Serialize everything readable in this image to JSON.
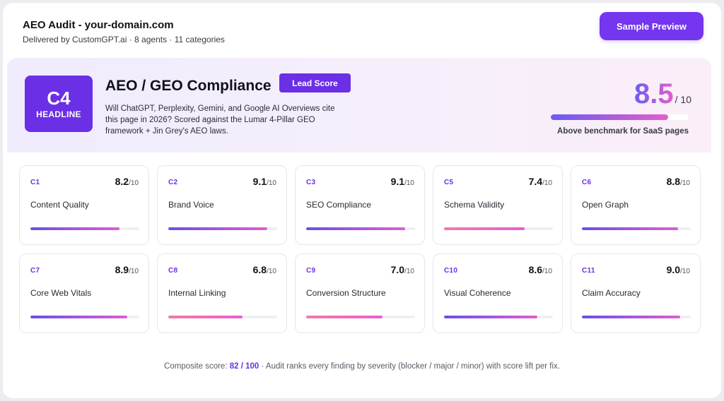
{
  "header": {
    "title": "AEO Audit - your-domain.com",
    "subtitle": "Delivered by CustomGPT.ai · 8 agents · 11 categories",
    "sample_button": "Sample Preview"
  },
  "hero": {
    "badge_code": "C4",
    "badge_label": "HEADLINE",
    "title": "AEO / GEO Compliance",
    "lead_button": "Lead Score",
    "description": "Will ChatGPT, Perplexity, Gemini, and Google AI Overviews cite this page in 2026? Scored against the Lumar 4-Pillar GEO framework + Jin Grey's AEO laws.",
    "score": "8.5",
    "score_max": "/ 10",
    "score_fraction": 0.85,
    "caption": "Above benchmark for SaaS pages"
  },
  "cards": [
    {
      "code": "C1",
      "score": "8.2",
      "max": "/10",
      "label": "Content Quality",
      "fraction": 0.82,
      "color": "purple"
    },
    {
      "code": "C2",
      "score": "9.1",
      "max": "/10",
      "label": "Brand Voice",
      "fraction": 0.91,
      "color": "purple"
    },
    {
      "code": "C3",
      "score": "9.1",
      "max": "/10",
      "label": "SEO Compliance",
      "fraction": 0.91,
      "color": "purple"
    },
    {
      "code": "C5",
      "score": "7.4",
      "max": "/10",
      "label": "Schema Validity",
      "fraction": 0.74,
      "color": "pink"
    },
    {
      "code": "C6",
      "score": "8.8",
      "max": "/10",
      "label": "Open Graph",
      "fraction": 0.88,
      "color": "purple"
    },
    {
      "code": "C7",
      "score": "8.9",
      "max": "/10",
      "label": "Core Web Vitals",
      "fraction": 0.89,
      "color": "purple"
    },
    {
      "code": "C8",
      "score": "6.8",
      "max": "/10",
      "label": "Internal Linking",
      "fraction": 0.68,
      "color": "pink"
    },
    {
      "code": "C9",
      "score": "7.0",
      "max": "/10",
      "label": "Conversion Structure",
      "fraction": 0.7,
      "color": "pink"
    },
    {
      "code": "C10",
      "score": "8.6",
      "max": "/10",
      "label": "Visual Coherence",
      "fraction": 0.86,
      "color": "purple"
    },
    {
      "code": "C11",
      "score": "9.0",
      "max": "/10",
      "label": "Claim Accuracy",
      "fraction": 0.9,
      "color": "purple"
    }
  ],
  "footer": {
    "prefix": "Composite score: ",
    "composite": "82 / 100",
    "suffix": " · Audit ranks every finding by severity (blocker / major / minor) with score lift per fix."
  }
}
